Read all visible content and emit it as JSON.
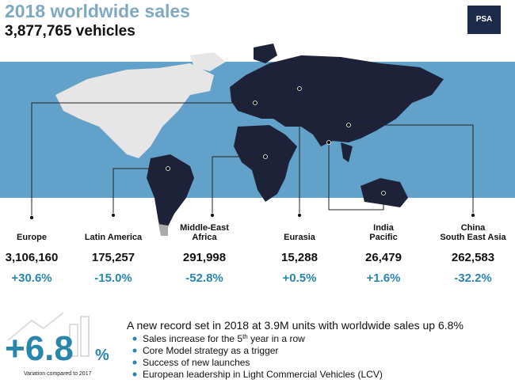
{
  "header": {
    "title": "2018 worldwide sales",
    "subtitle": "3,877,765 vehicles",
    "logo": "PSA"
  },
  "regions": [
    {
      "name": [
        "Europe"
      ],
      "units": "3,106,160",
      "change": "+30.6%"
    },
    {
      "name": [
        "Latin America"
      ],
      "units": "175,257",
      "change": "-15.0%"
    },
    {
      "name": [
        "Middle-East",
        "Africa"
      ],
      "units": "291,998",
      "change": "-52.8%"
    },
    {
      "name": [
        "Eurasia"
      ],
      "units": "15,288",
      "change": "+0.5%"
    },
    {
      "name": [
        "India",
        "Pacific"
      ],
      "units": "26,479",
      "change": "+1.6%"
    },
    {
      "name": [
        "China",
        "South East Asia"
      ],
      "units": "262,583",
      "change": "-32.2%"
    }
  ],
  "summary": {
    "big_value": "+6.8",
    "big_unit": "%",
    "caption": "Variation compared to 2017",
    "headline": "A new record set in 2018 at 3.9M units with worldwide sales up 6.8%",
    "bullets": [
      [
        "Sales increase for the 5",
        "th",
        " year in a row"
      ],
      [
        "Core Model strategy as a trigger"
      ],
      [
        "Success of new launches"
      ],
      [
        "European leadership in Light Commercial Vehicles (LCV)"
      ]
    ]
  }
}
